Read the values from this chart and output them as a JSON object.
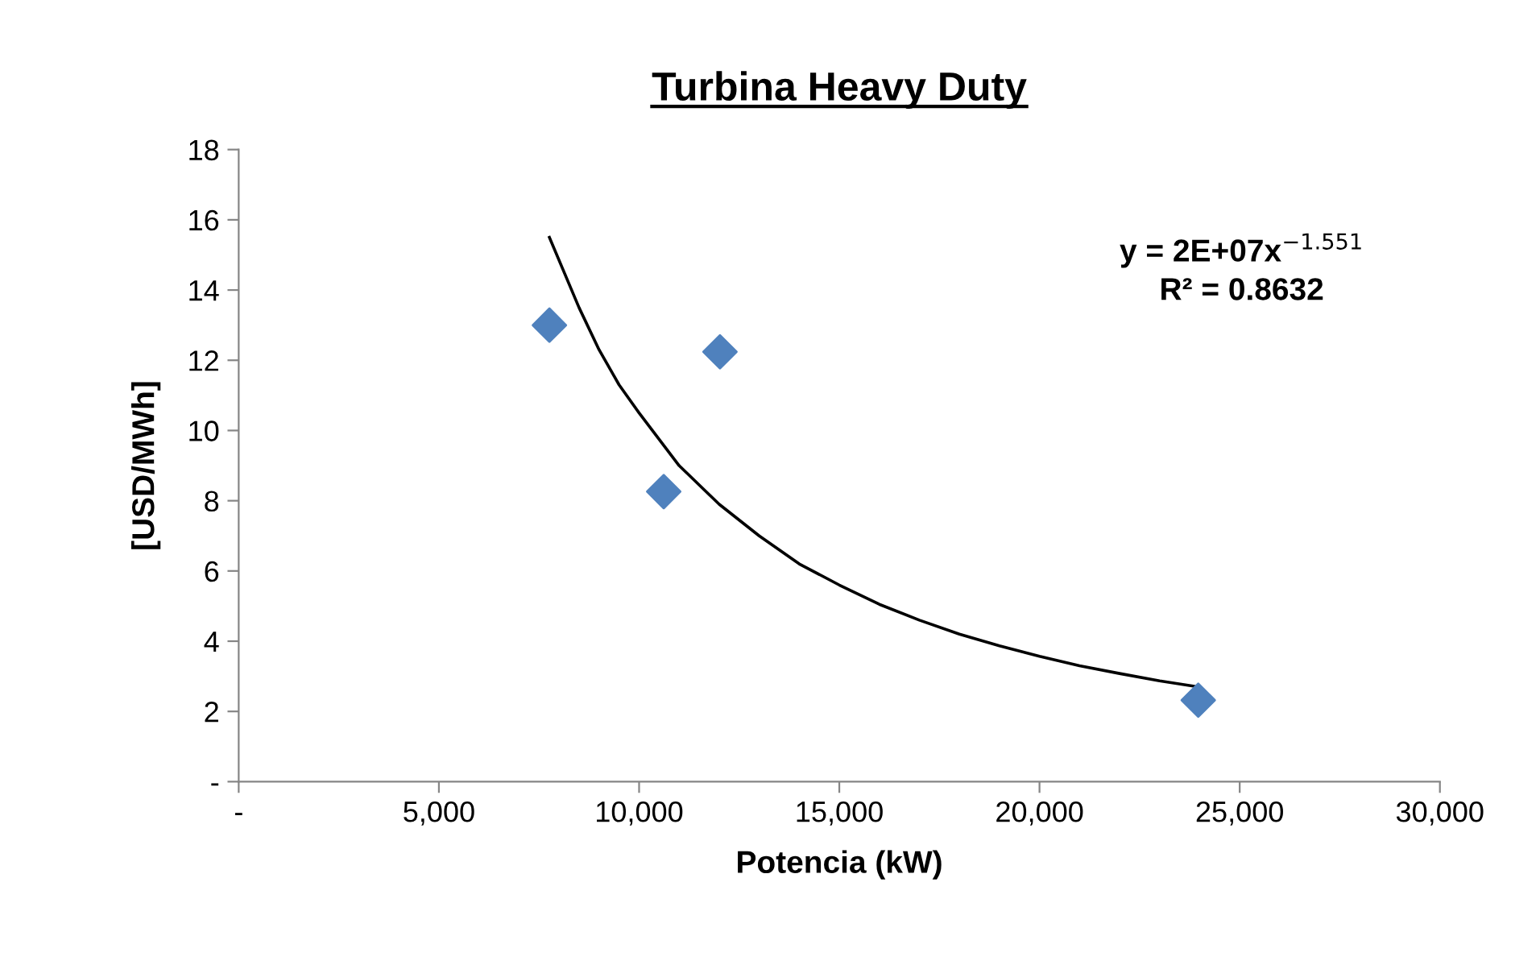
{
  "chart_data": {
    "type": "scatter",
    "title": "Turbina Heavy Duty",
    "xlabel": "Potencia (kW)",
    "ylabel": "[USD/MWh]",
    "xlim": [
      0,
      30000
    ],
    "ylim": [
      0,
      18
    ],
    "xticks": [
      {
        "value": 0,
        "label": "-"
      },
      {
        "value": 5000,
        "label": "5,000"
      },
      {
        "value": 10000,
        "label": "10,000"
      },
      {
        "value": 15000,
        "label": "15,000"
      },
      {
        "value": 20000,
        "label": "20,000"
      },
      {
        "value": 25000,
        "label": "25,000"
      },
      {
        "value": 30000,
        "label": "30,000"
      }
    ],
    "yticks": [
      {
        "value": 0,
        "label": "-"
      },
      2,
      4,
      6,
      8,
      10,
      12,
      14,
      16,
      18
    ],
    "grid": false,
    "legend": false,
    "annotations": [
      "y = 2E+07x$^{−1.551}$",
      "R² = 0.8632"
    ],
    "series": [
      {
        "color": "#4f81bd",
        "marker": "diamond",
        "x": [
          7760,
          10615,
          12020,
          23965
        ],
        "values": [
          13.0,
          8.26,
          12.24,
          2.32
        ]
      },
      {
        "type": "line",
        "color": "#000000",
        "marker": "none",
        "line_style": "solid",
        "x": [
          7760,
          8500,
          9000,
          9500,
          10000,
          11000,
          12000,
          13000,
          14000,
          15000,
          16000,
          17000,
          18000,
          19000,
          20000,
          21000,
          22000,
          23000,
          23965
        ],
        "values": [
          15.5,
          13.5,
          12.3,
          11.3,
          10.5,
          9.0,
          7.9,
          7.0,
          6.2,
          5.6,
          5.05,
          4.6,
          4.2,
          3.87,
          3.57,
          3.3,
          3.08,
          2.87,
          2.7
        ]
      }
    ]
  }
}
